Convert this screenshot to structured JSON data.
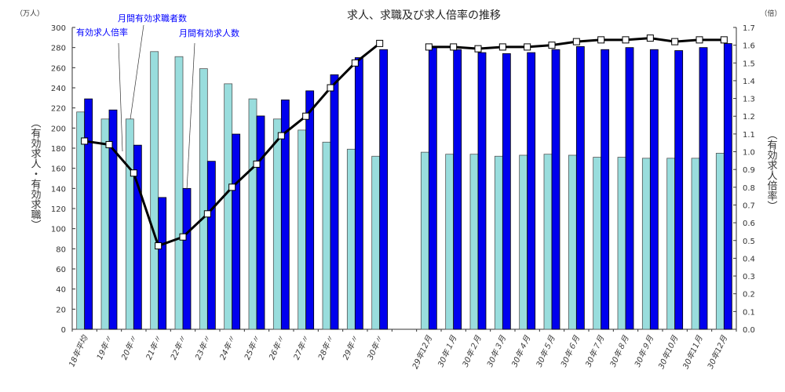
{
  "chart_data": {
    "type": "bar+line",
    "title": "求人、求職及び求人倍率の推移",
    "left_unit": "（万人）",
    "right_unit": "（倍）",
    "ylabel_left": "（有効求人・有効求職）",
    "ylabel_right": "（有効求人倍率）",
    "ylim_left": [
      0,
      300
    ],
    "yticks_left": [
      "0",
      "20",
      "40",
      "60",
      "80",
      "100",
      "120",
      "140",
      "160",
      "180",
      "200",
      "220",
      "240",
      "260",
      "280",
      "300"
    ],
    "ylim_right": [
      0,
      1.7
    ],
    "yticks_right": [
      "0.0",
      "0.1",
      "0.2",
      "0.3",
      "0.4",
      "0.5",
      "0.6",
      "0.7",
      "0.8",
      "0.9",
      "1.0",
      "1.1",
      "1.2",
      "1.3",
      "1.4",
      "1.5",
      "1.6",
      "1.7"
    ],
    "grid": false,
    "categories": [
      "18年平均",
      "19年〃",
      "20年〃",
      "21年〃",
      "22年〃",
      "23年〃",
      "24年〃",
      "25年〃",
      "26年〃",
      "27年〃",
      "28年〃",
      "29年〃",
      "30年〃",
      "",
      "29年12月",
      "30年１月",
      "30年２月",
      "30年３月",
      "30年４月",
      "30年５月",
      "30年６月",
      "30年７月",
      "30年８月",
      "30年９月",
      "30年10月",
      "30年11月",
      "30年12月"
    ],
    "series": [
      {
        "name": "月間有効求職者数",
        "type": "bar",
        "axis": "left",
        "color": "#99dddd",
        "values": [
          216,
          209,
          209,
          276,
          271,
          259,
          244,
          229,
          209,
          198,
          186,
          179,
          172,
          null,
          176,
          174,
          174,
          172,
          173,
          174,
          173,
          171,
          171,
          170,
          170,
          170,
          175
        ]
      },
      {
        "name": "月間有効求人数",
        "type": "bar",
        "axis": "left",
        "color": "#0000ee",
        "values": [
          229,
          218,
          183,
          131,
          140,
          167,
          194,
          212,
          228,
          237,
          253,
          270,
          278,
          null,
          280,
          278,
          275,
          274,
          275,
          278,
          281,
          278,
          280,
          278,
          277,
          280,
          284
        ]
      },
      {
        "name": "有効求人倍率",
        "type": "line",
        "axis": "right",
        "color": "#000000",
        "values": [
          1.06,
          1.04,
          0.88,
          0.47,
          0.52,
          0.65,
          0.8,
          0.93,
          1.09,
          1.2,
          1.36,
          1.5,
          1.61,
          null,
          1.59,
          1.59,
          1.58,
          1.59,
          1.59,
          1.6,
          1.62,
          1.63,
          1.63,
          1.64,
          1.62,
          1.63,
          1.63
        ]
      }
    ]
  }
}
